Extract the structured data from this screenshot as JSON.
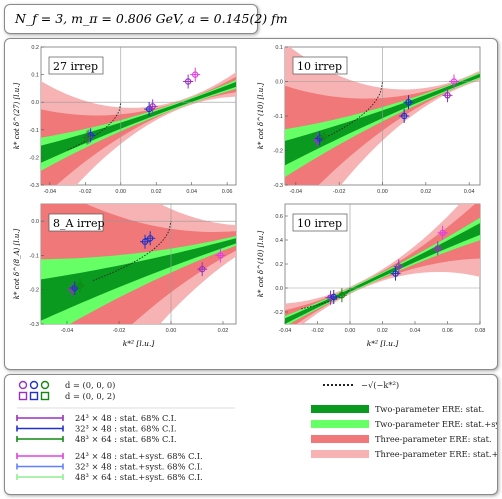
{
  "header": {
    "text": "N_f = 3,  m_π = 0.806 GeV,  a = 0.145(2) fm"
  },
  "colors": {
    "ere2_stat": "#0a9a1f",
    "ere2_syst": "#66ff66",
    "ere3_stat": "#f07878",
    "ere3_syst": "#f7b3b3",
    "purple": "#9b30c0",
    "blue": "#2030c8",
    "green": "#108a10",
    "magenta": "#e040e0",
    "lightblue": "#6080ff",
    "lightgreen": "#90ee90"
  },
  "chart_data": [
    {
      "type": "scatter",
      "irrep_label": "27 irrep",
      "ylabel": "k* cot δ^(27) [l.u.]",
      "xlabel": "",
      "xlim": [
        -0.045,
        0.065
      ],
      "ylim": [
        -0.3,
        0.2
      ],
      "xticks": [
        -0.04,
        -0.02,
        0.0,
        0.02,
        0.04,
        0.06
      ],
      "yticks": [
        -0.3,
        -0.2,
        -0.1,
        0.0,
        0.1,
        0.2
      ],
      "xtick_labels": [
        "-0.04",
        "-0.02",
        "0.00",
        "0.02",
        "0.04",
        "0.06"
      ],
      "ytick_labels": [
        "-0.3",
        "-0.2",
        "-0.1",
        "0.0",
        "0.1",
        "0.2"
      ],
      "fit": {
        "slope": 2.3,
        "intercept": -0.085
      },
      "points": [
        {
          "x": -0.018,
          "y": -0.125,
          "c": "purple"
        },
        {
          "x": -0.017,
          "y": -0.12,
          "c": "blue"
        },
        {
          "x": -0.019,
          "y": -0.128,
          "c": "green"
        },
        {
          "x": 0.016,
          "y": -0.025,
          "c": "blue"
        },
        {
          "x": 0.018,
          "y": -0.015,
          "c": "purple"
        },
        {
          "x": 0.038,
          "y": 0.075,
          "c": "purple"
        },
        {
          "x": 0.042,
          "y": 0.1,
          "c": "magenta"
        }
      ]
    },
    {
      "type": "scatter",
      "irrep_label": "10 irrep",
      "ylabel": "k* cot δ^(10) [l.u.]",
      "xlabel": "",
      "xlim": [
        -0.045,
        0.045
      ],
      "ylim": [
        -0.3,
        0.1
      ],
      "xticks": [
        -0.04,
        -0.02,
        0.0,
        0.02,
        0.04
      ],
      "yticks": [
        -0.3,
        -0.2,
        -0.1,
        0.0,
        0.1
      ],
      "xtick_labels": [
        "-0.04",
        "-0.02",
        "0.00",
        "0.02",
        "0.04"
      ],
      "ytick_labels": [
        "-0.3",
        "-0.2",
        "-0.1",
        "0.0",
        "0.1"
      ],
      "fit": {
        "slope": 2.5,
        "intercept": -0.095
      },
      "points": [
        {
          "x": -0.03,
          "y": -0.17,
          "c": "purple"
        },
        {
          "x": -0.029,
          "y": -0.165,
          "c": "blue"
        },
        {
          "x": -0.027,
          "y": -0.16,
          "c": "green"
        },
        {
          "x": 0.01,
          "y": -0.1,
          "c": "blue"
        },
        {
          "x": 0.012,
          "y": -0.06,
          "c": "blue"
        },
        {
          "x": 0.03,
          "y": -0.04,
          "c": "purple"
        },
        {
          "x": 0.033,
          "y": 0.0,
          "c": "magenta"
        }
      ]
    },
    {
      "type": "scatter",
      "irrep_label": "8_A irrep",
      "ylabel": "k* cot δ^(8_A) [l.u.]",
      "xlabel": "k*²  [l.u.]",
      "xlim": [
        -0.05,
        0.025
      ],
      "ylim": [
        -0.3,
        0.05
      ],
      "xticks": [
        -0.04,
        -0.02,
        0.0,
        0.02
      ],
      "yticks": [
        -0.3,
        -0.2,
        -0.1,
        0.0
      ],
      "xtick_labels": [
        "-0.04",
        "-0.02",
        "0.00",
        "0.02"
      ],
      "ytick_labels": [
        "-0.3",
        "-0.2",
        "-0.1",
        "0.0"
      ],
      "fit": {
        "slope": 2.3,
        "intercept": -0.115
      },
      "points": [
        {
          "x": -0.038,
          "y": -0.2,
          "c": "purple"
        },
        {
          "x": -0.037,
          "y": -0.195,
          "c": "blue"
        },
        {
          "x": -0.035,
          "y": -0.188,
          "c": "green"
        },
        {
          "x": -0.01,
          "y": -0.06,
          "c": "blue"
        },
        {
          "x": -0.008,
          "y": -0.05,
          "c": "blue"
        },
        {
          "x": 0.012,
          "y": -0.14,
          "c": "purple"
        },
        {
          "x": 0.019,
          "y": -0.1,
          "c": "magenta"
        }
      ]
    },
    {
      "type": "scatter",
      "irrep_label": "10 irrep",
      "ylabel": "k* cot δ^(10) [l.u.]",
      "xlabel": "k*²  [l.u.]",
      "xlim": [
        -0.04,
        0.08
      ],
      "ylim": [
        -0.3,
        0.7
      ],
      "xticks": [
        -0.04,
        -0.02,
        0.0,
        0.02,
        0.04,
        0.06,
        0.08
      ],
      "yticks": [
        -0.2,
        0.0,
        0.2,
        0.4,
        0.6
      ],
      "xtick_labels": [
        "-0.04",
        "-0.02",
        "0.00",
        "0.02",
        "0.04",
        "0.06",
        "0.08"
      ],
      "ytick_labels": [
        "-0.2",
        "0.0",
        "0.2",
        "0.4",
        "0.6"
      ],
      "fit": {
        "slope": 6.4,
        "intercept": -0.02
      },
      "points": [
        {
          "x": -0.012,
          "y": -0.08,
          "c": "purple"
        },
        {
          "x": -0.01,
          "y": -0.075,
          "c": "blue"
        },
        {
          "x": -0.005,
          "y": -0.06,
          "c": "green"
        },
        {
          "x": 0.028,
          "y": 0.12,
          "c": "blue"
        },
        {
          "x": 0.03,
          "y": 0.18,
          "c": "purple"
        },
        {
          "x": 0.054,
          "y": 0.33,
          "c": "purple"
        },
        {
          "x": 0.057,
          "y": 0.46,
          "c": "magenta"
        }
      ]
    }
  ],
  "legend": {
    "markers": [
      {
        "label": "d = (0, 0, 0)",
        "shape": "circle"
      },
      {
        "label": "d = (0, 0, 2)",
        "shape": "square"
      }
    ],
    "stat_lines": [
      {
        "label": "24³ × 48 :  stat. 68% C.I.",
        "color": "#9b30c0"
      },
      {
        "label": "32³ × 48 :  stat. 68% C.I.",
        "color": "#2030c8"
      },
      {
        "label": "48³ × 64 :  stat. 68% C.I.",
        "color": "#108a10"
      }
    ],
    "syst_lines": [
      {
        "label": "24³ × 48 :  stat.+syst. 68% C.I.",
        "color": "#e040e0"
      },
      {
        "label": "32³ × 48 :  stat.+syst. 68% C.I.",
        "color": "#6080ff"
      },
      {
        "label": "48³ × 64 :  stat.+syst. 68% C.I.",
        "color": "#90ee90"
      }
    ],
    "dotted_label": "−√(−k*²)",
    "bands": [
      {
        "label": "Two-parameter ERE: stat.",
        "color": "#0a9a1f"
      },
      {
        "label": "Two-parameter ERE: stat.+syst.",
        "color": "#66ff66"
      },
      {
        "label": "Three-parameter ERE: stat.",
        "color": "#f07878"
      },
      {
        "label": "Three-parameter ERE: stat.+syst.",
        "color": "#f7b3b3"
      }
    ]
  }
}
